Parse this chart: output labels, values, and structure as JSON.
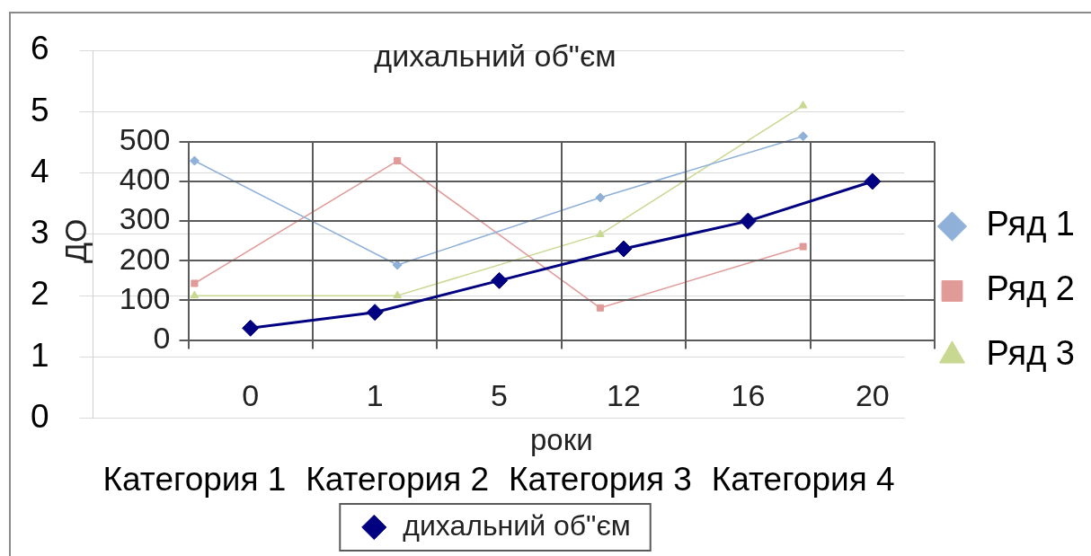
{
  "chart_data": [
    {
      "type": "line",
      "categories": [
        "Категория 1",
        "Категория 2",
        "Категория 3",
        "Категория 4"
      ],
      "series": [
        {
          "name": "Ряд 1",
          "color": "#8fb0d8",
          "marker": "diamond",
          "values": [
            4.2,
            2.5,
            3.6,
            4.6
          ]
        },
        {
          "name": "Ряд 2",
          "color": "#e09a98",
          "marker": "square",
          "values": [
            2.2,
            4.2,
            1.8,
            2.8
          ]
        },
        {
          "name": "Ряд 3",
          "color": "#c8d890",
          "marker": "triangle",
          "values": [
            2,
            2,
            3,
            5.1
          ]
        }
      ],
      "ylim": [
        0,
        6
      ],
      "yticks": [
        0,
        1,
        2,
        3,
        4,
        5,
        6
      ],
      "grid": "y",
      "legend": "right"
    },
    {
      "type": "line",
      "title": "дихальний об\"єм",
      "xlabel": "роки",
      "ylabel": "ДО",
      "categories": [
        "0",
        "1",
        "5",
        "12",
        "16",
        "20"
      ],
      "series": [
        {
          "name": "дихальний об\"єм",
          "color": "#000080",
          "values": [
            30,
            70,
            150,
            230,
            300,
            400
          ]
        }
      ],
      "ylim": [
        0,
        500
      ],
      "yticks": [
        0,
        100,
        200,
        300,
        400,
        500
      ],
      "grid": true,
      "legend": "bottom",
      "marker": "diamond"
    }
  ]
}
